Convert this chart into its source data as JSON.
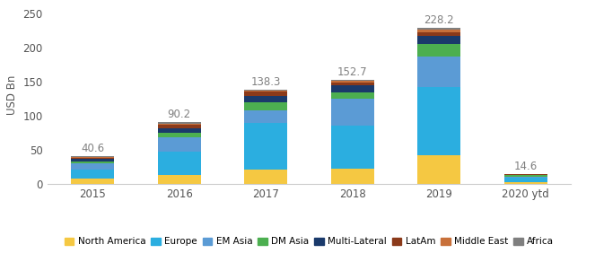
{
  "years": [
    "2015",
    "2016",
    "2017",
    "2018",
    "2019",
    "2020 ytd"
  ],
  "totals": [
    40.6,
    90.2,
    138.3,
    152.7,
    228.2,
    14.6
  ],
  "segments_ordered": [
    "North America",
    "Europe",
    "EM Asia",
    "DM Asia",
    "Multi-Lateral",
    "LatAm",
    "Middle East",
    "Africa"
  ],
  "segments": {
    "North America": [
      8.0,
      13.0,
      22.0,
      23.0,
      42.0,
      3.5
    ],
    "Europe": [
      14.0,
      35.0,
      68.0,
      62.0,
      100.0,
      6.0
    ],
    "EM Asia": [
      8.0,
      20.0,
      18.0,
      40.0,
      45.0,
      2.0
    ],
    "DM Asia": [
      3.5,
      7.0,
      12.0,
      9.0,
      18.0,
      1.5
    ],
    "Multi-Lateral": [
      4.0,
      7.0,
      9.0,
      10.0,
      12.0,
      1.0
    ],
    "LatAm": [
      1.5,
      4.5,
      6.0,
      5.0,
      5.0,
      0.4
    ],
    "Middle East": [
      0.6,
      1.7,
      1.3,
      1.7,
      3.2,
      0.2
    ],
    "Africa": [
      1.0,
      2.0,
      2.0,
      2.0,
      3.0,
      0.0
    ]
  },
  "colors": {
    "North America": "#F5C842",
    "Europe": "#2BAEE0",
    "EM Asia": "#5B9BD5",
    "DM Asia": "#4CAF50",
    "Multi-Lateral": "#1A3A6B",
    "LatAm": "#8B3A1A",
    "Middle East": "#C8703A",
    "Africa": "#7F7F7F"
  },
  "ylabel": "USD Bn",
  "ylim": [
    0,
    260
  ],
  "yticks": [
    0,
    50,
    100,
    150,
    200,
    250
  ],
  "bar_width": 0.5,
  "bg_color": "#FFFFFF",
  "label_color": "#808080",
  "label_fontsize": 8.5,
  "tick_fontsize": 8.5,
  "ylabel_fontsize": 8.5,
  "legend_fontsize": 7.5
}
